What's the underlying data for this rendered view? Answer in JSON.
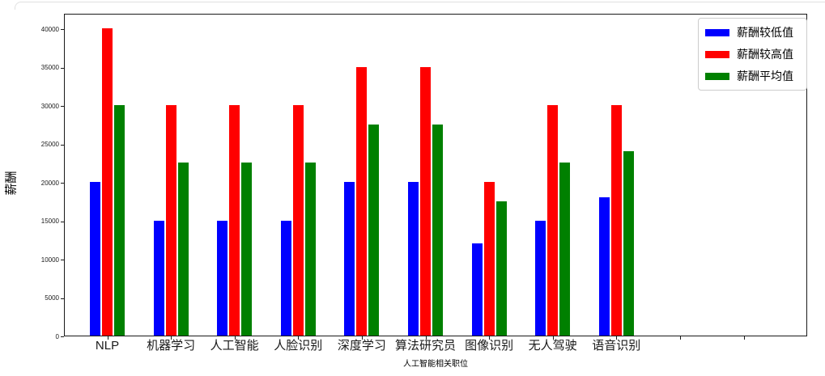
{
  "figure": {
    "background": "#ffffff",
    "card_border_color": "#e0e0e0",
    "spine_color": "#1a1a1a"
  },
  "chart_data": {
    "type": "bar",
    "title": "",
    "xlabel": "人工智能相关职位",
    "ylabel": "薪酬",
    "categories": [
      "NLP",
      "机器学习",
      "人工智能",
      "人脸识别",
      "深度学习",
      "算法研究员",
      "图像识别",
      "无人驾驶",
      "语音识别"
    ],
    "series": [
      {
        "name": "薪酬较低值",
        "color": "#0000ff",
        "values": [
          20000,
          15000,
          15000,
          15000,
          20000,
          20000,
          12000,
          15000,
          18000
        ]
      },
      {
        "name": "薪酬较高值",
        "color": "#ff0000",
        "values": [
          40000,
          30000,
          30000,
          30000,
          35000,
          35000,
          20000,
          30000,
          30000
        ]
      },
      {
        "name": "薪酬平均值",
        "color": "#008000",
        "values": [
          30000,
          22500,
          22500,
          22500,
          27500,
          27500,
          17500,
          22500,
          24000
        ]
      }
    ],
    "yticks": [
      0,
      5000,
      10000,
      15000,
      20000,
      25000,
      30000,
      35000,
      40000
    ],
    "ylim": [
      0,
      42000
    ],
    "grid": false,
    "legend_position": "upper right",
    "unlabeled_extra_x_ticks": 2
  }
}
